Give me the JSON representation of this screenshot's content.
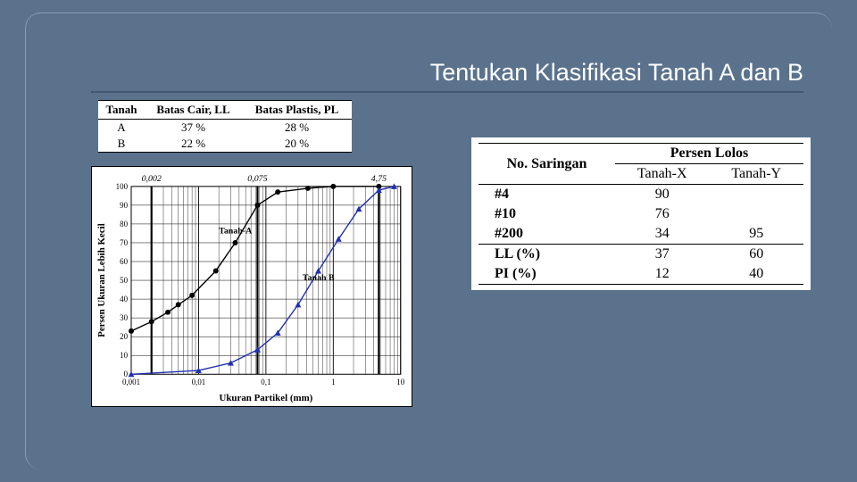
{
  "title": "Tentukan Klasifikasi Tanah A dan B",
  "table_ab": {
    "headers": [
      "Tanah",
      "Batas Cair, LL",
      "Batas Plastis, PL"
    ],
    "rows": [
      [
        "A",
        "37 %",
        "28 %"
      ],
      [
        "B",
        "22 %",
        "20 %"
      ]
    ]
  },
  "table_xy": {
    "col1_header": "No. Saringan",
    "group_header": "Persen Lolos",
    "subheaders": [
      "Tanah-X",
      "Tanah-Y"
    ],
    "rows": [
      {
        "label": "#4",
        "x": "90",
        "y": ""
      },
      {
        "label": "#10",
        "x": "76",
        "y": ""
      },
      {
        "label": "#200",
        "x": "34",
        "y": "95"
      },
      {
        "label": "LL (%)",
        "x": "37",
        "y": "60"
      },
      {
        "label": "PI (%)",
        "x": "12",
        "y": "40"
      }
    ]
  },
  "chart": {
    "type": "line",
    "xlabel": "Ukuran Partikel (mm)",
    "ylabel": "Persen Ukuran Lebih Kecil",
    "xscale": "log",
    "xlim": [
      0.001,
      10
    ],
    "ylim": [
      0,
      100
    ],
    "ytick_step": 10,
    "xticks": [
      0.001,
      0.01,
      0.1,
      1,
      10
    ],
    "xtick_labels": [
      "0,001",
      "0,01",
      "0,1",
      "1",
      "10"
    ],
    "ref_lines": [
      {
        "x": 0.002,
        "label": "0,002"
      },
      {
        "x": 0.075,
        "label": "0,075"
      },
      {
        "x": 4.75,
        "label": "4,75"
      }
    ],
    "series": [
      {
        "name": "Tanah-A",
        "color": "#000000",
        "marker": "circle",
        "points": [
          {
            "x": 0.001,
            "y": 23
          },
          {
            "x": 0.002,
            "y": 28
          },
          {
            "x": 0.0035,
            "y": 33
          },
          {
            "x": 0.005,
            "y": 37
          },
          {
            "x": 0.008,
            "y": 42
          },
          {
            "x": 0.018,
            "y": 55
          },
          {
            "x": 0.035,
            "y": 70
          },
          {
            "x": 0.075,
            "y": 90
          },
          {
            "x": 0.15,
            "y": 97
          },
          {
            "x": 0.42,
            "y": 99
          },
          {
            "x": 1.0,
            "y": 100
          },
          {
            "x": 4.75,
            "y": 100
          }
        ]
      },
      {
        "name": "Tanah B",
        "color": "#2030b0",
        "marker": "triangle",
        "points": [
          {
            "x": 0.001,
            "y": 0
          },
          {
            "x": 0.01,
            "y": 2
          },
          {
            "x": 0.03,
            "y": 6
          },
          {
            "x": 0.075,
            "y": 13
          },
          {
            "x": 0.15,
            "y": 22
          },
          {
            "x": 0.3,
            "y": 37
          },
          {
            "x": 0.6,
            "y": 55
          },
          {
            "x": 1.2,
            "y": 72
          },
          {
            "x": 2.4,
            "y": 88
          },
          {
            "x": 4.75,
            "y": 98
          },
          {
            "x": 8,
            "y": 100
          }
        ]
      }
    ],
    "label_fontsize": 11,
    "tick_fontsize": 9,
    "background_color": "#ffffff",
    "grid_color": "#000000"
  }
}
